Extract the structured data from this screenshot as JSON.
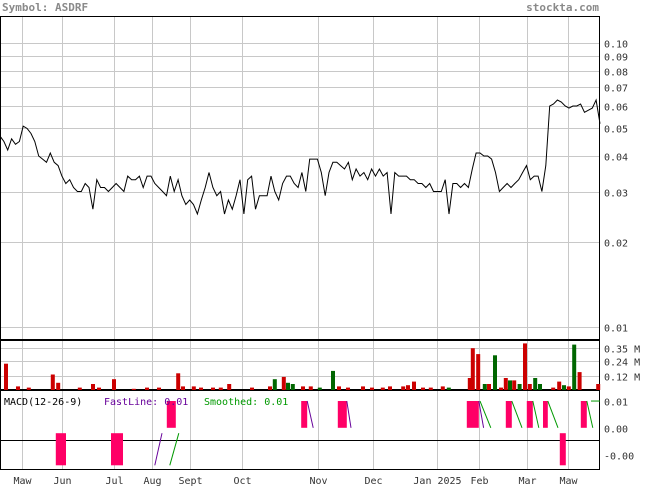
{
  "header": {
    "symbol_text": "Symbol: ASDRF",
    "site": "stockta.com"
  },
  "colors": {
    "price_line": "#000000",
    "vol_up": "#cc0000",
    "vol_down": "#006600",
    "macd_fill": "#ff0066",
    "fast": "#660099",
    "smooth": "#009900",
    "grid": "#c8c8c8"
  },
  "chart_data": [
    {
      "type": "line",
      "name": "price",
      "scale": "log",
      "ylim": [
        0.009,
        0.1
      ],
      "y_ticks": [
        "0.10",
        "0.09",
        "0.08",
        "0.07",
        "0.06",
        "0.05",
        "0.04",
        "0.03",
        "0.02",
        "0.01"
      ],
      "y_tick_values": [
        0.1,
        0.09,
        0.08,
        0.07,
        0.06,
        0.05,
        0.04,
        0.03,
        0.02,
        0.01
      ],
      "x_labels": [
        "Maw",
        "Jun",
        "Jul",
        "Aug",
        "Sept",
        "Oct",
        "Nov",
        "Dec",
        "Jan 2025",
        "Feb",
        "Mar",
        "Maw"
      ],
      "x_label_pos": [
        0.036,
        0.103,
        0.19,
        0.253,
        0.317,
        0.403,
        0.53,
        0.621,
        0.729,
        0.798,
        0.878,
        0.946
      ],
      "values": [
        0.047,
        0.045,
        0.042,
        0.046,
        0.044,
        0.045,
        0.051,
        0.05,
        0.048,
        0.045,
        0.04,
        0.039,
        0.038,
        0.041,
        0.038,
        0.037,
        0.034,
        0.032,
        0.033,
        0.031,
        0.03,
        0.03,
        0.032,
        0.031,
        0.026,
        0.033,
        0.031,
        0.031,
        0.03,
        0.031,
        0.032,
        0.031,
        0.03,
        0.034,
        0.033,
        0.033,
        0.034,
        0.031,
        0.034,
        0.034,
        0.032,
        0.031,
        0.03,
        0.029,
        0.034,
        0.03,
        0.033,
        0.029,
        0.027,
        0.028,
        0.027,
        0.025,
        0.028,
        0.031,
        0.035,
        0.031,
        0.029,
        0.03,
        0.025,
        0.028,
        0.026,
        0.029,
        0.033,
        0.025,
        0.033,
        0.034,
        0.026,
        0.029,
        0.029,
        0.029,
        0.034,
        0.03,
        0.028,
        0.032,
        0.034,
        0.034,
        0.032,
        0.031,
        0.035,
        0.03,
        0.039,
        0.039,
        0.039,
        0.035,
        0.029,
        0.035,
        0.038,
        0.038,
        0.037,
        0.036,
        0.038,
        0.033,
        0.036,
        0.034,
        0.035,
        0.033,
        0.036,
        0.034,
        0.036,
        0.034,
        0.035,
        0.025,
        0.035,
        0.034,
        0.034,
        0.034,
        0.033,
        0.033,
        0.032,
        0.032,
        0.031,
        0.032,
        0.03,
        0.03,
        0.03,
        0.033,
        0.025,
        0.032,
        0.032,
        0.031,
        0.032,
        0.031,
        0.036,
        0.041,
        0.041,
        0.04,
        0.04,
        0.039,
        0.035,
        0.03,
        0.031,
        0.032,
        0.031,
        0.032,
        0.033,
        0.035,
        0.037,
        0.033,
        0.034,
        0.034,
        0.03,
        0.037,
        0.06,
        0.061,
        0.063,
        0.062,
        0.06,
        0.059,
        0.06,
        0.06,
        0.061,
        0.057,
        0.058,
        0.059,
        0.063,
        0.052
      ]
    },
    {
      "type": "bar",
      "name": "volume",
      "y_ticks": [
        "0.35 M",
        "0.24 M",
        "0.12 M"
      ],
      "y_tick_values": [
        0.35,
        0.24,
        0.12
      ],
      "ylim": [
        0,
        0.41
      ],
      "bars": [
        {
          "x": 0.01,
          "v": 0.22,
          "c": "u"
        },
        {
          "x": 0.03,
          "v": 0.03,
          "c": "u"
        },
        {
          "x": 0.048,
          "v": 0.02,
          "c": "u"
        },
        {
          "x": 0.088,
          "v": 0.13,
          "c": "u"
        },
        {
          "x": 0.097,
          "v": 0.06,
          "c": "u"
        },
        {
          "x": 0.133,
          "v": 0.02,
          "c": "u"
        },
        {
          "x": 0.155,
          "v": 0.05,
          "c": "u"
        },
        {
          "x": 0.165,
          "v": 0.02,
          "c": "u"
        },
        {
          "x": 0.19,
          "v": 0.09,
          "c": "u"
        },
        {
          "x": 0.223,
          "v": 0.01,
          "c": "u"
        },
        {
          "x": 0.245,
          "v": 0.02,
          "c": "u"
        },
        {
          "x": 0.265,
          "v": 0.02,
          "c": "u"
        },
        {
          "x": 0.297,
          "v": 0.14,
          "c": "u"
        },
        {
          "x": 0.305,
          "v": 0.03,
          "c": "u"
        },
        {
          "x": 0.323,
          "v": 0.03,
          "c": "u"
        },
        {
          "x": 0.335,
          "v": 0.02,
          "c": "u"
        },
        {
          "x": 0.355,
          "v": 0.02,
          "c": "u"
        },
        {
          "x": 0.368,
          "v": 0.02,
          "c": "u"
        },
        {
          "x": 0.382,
          "v": 0.05,
          "c": "u"
        },
        {
          "x": 0.42,
          "v": 0.02,
          "c": "u"
        },
        {
          "x": 0.45,
          "v": 0.03,
          "c": "u"
        },
        {
          "x": 0.458,
          "v": 0.09,
          "c": "d"
        },
        {
          "x": 0.473,
          "v": 0.11,
          "c": "u"
        },
        {
          "x": 0.48,
          "v": 0.06,
          "c": "d"
        },
        {
          "x": 0.488,
          "v": 0.05,
          "c": "d"
        },
        {
          "x": 0.505,
          "v": 0.03,
          "c": "u"
        },
        {
          "x": 0.518,
          "v": 0.03,
          "c": "u"
        },
        {
          "x": 0.533,
          "v": 0.02,
          "c": "d"
        },
        {
          "x": 0.555,
          "v": 0.16,
          "c": "d"
        },
        {
          "x": 0.565,
          "v": 0.03,
          "c": "u"
        },
        {
          "x": 0.58,
          "v": 0.02,
          "c": "u"
        },
        {
          "x": 0.605,
          "v": 0.03,
          "c": "u"
        },
        {
          "x": 0.62,
          "v": 0.02,
          "c": "u"
        },
        {
          "x": 0.638,
          "v": 0.02,
          "c": "u"
        },
        {
          "x": 0.65,
          "v": 0.03,
          "c": "u"
        },
        {
          "x": 0.672,
          "v": 0.03,
          "c": "u"
        },
        {
          "x": 0.68,
          "v": 0.04,
          "c": "u"
        },
        {
          "x": 0.69,
          "v": 0.07,
          "c": "u"
        },
        {
          "x": 0.705,
          "v": 0.02,
          "c": "u"
        },
        {
          "x": 0.718,
          "v": 0.02,
          "c": "u"
        },
        {
          "x": 0.738,
          "v": 0.03,
          "c": "u"
        },
        {
          "x": 0.748,
          "v": 0.02,
          "c": "d"
        },
        {
          "x": 0.783,
          "v": 0.1,
          "c": "u"
        },
        {
          "x": 0.788,
          "v": 0.35,
          "c": "u"
        },
        {
          "x": 0.797,
          "v": 0.3,
          "c": "u"
        },
        {
          "x": 0.808,
          "v": 0.05,
          "c": "d"
        },
        {
          "x": 0.815,
          "v": 0.05,
          "c": "u"
        },
        {
          "x": 0.825,
          "v": 0.29,
          "c": "d"
        },
        {
          "x": 0.835,
          "v": 0.02,
          "c": "u"
        },
        {
          "x": 0.843,
          "v": 0.1,
          "c": "u"
        },
        {
          "x": 0.85,
          "v": 0.08,
          "c": "d"
        },
        {
          "x": 0.857,
          "v": 0.08,
          "c": "u"
        },
        {
          "x": 0.866,
          "v": 0.05,
          "c": "d"
        },
        {
          "x": 0.875,
          "v": 0.39,
          "c": "u"
        },
        {
          "x": 0.883,
          "v": 0.05,
          "c": "u"
        },
        {
          "x": 0.892,
          "v": 0.1,
          "c": "d"
        },
        {
          "x": 0.9,
          "v": 0.05,
          "c": "d"
        },
        {
          "x": 0.922,
          "v": 0.02,
          "c": "u"
        },
        {
          "x": 0.932,
          "v": 0.07,
          "c": "u"
        },
        {
          "x": 0.94,
          "v": 0.04,
          "c": "d"
        },
        {
          "x": 0.948,
          "v": 0.03,
          "c": "u"
        },
        {
          "x": 0.957,
          "v": 0.38,
          "c": "d"
        },
        {
          "x": 0.966,
          "v": 0.15,
          "c": "u"
        },
        {
          "x": 0.997,
          "v": 0.05,
          "c": "u"
        }
      ]
    },
    {
      "type": "macd",
      "name": "MACD(12-26-9)",
      "label_title": "MACD(12-26-9)",
      "label_fast": "FastLine: 0.01",
      "label_smooth": "Smoothed: 0.01",
      "y_ticks": [
        "0.01",
        "0.00",
        "-0.00"
      ],
      "y_tick_values": [
        0.01,
        0.0,
        -0.01
      ],
      "ylim": [
        -0.015,
        0.013
      ],
      "blocks": [
        {
          "x0": 0.093,
          "x1": 0.11,
          "hi": -0.002,
          "lo": -0.014
        },
        {
          "x0": 0.185,
          "x1": 0.205,
          "hi": -0.002,
          "lo": -0.014
        },
        {
          "x0": 0.278,
          "x1": 0.293,
          "hi": 0.01,
          "lo": 0.0
        },
        {
          "x0": 0.502,
          "x1": 0.512,
          "hi": 0.01,
          "lo": 0.0
        },
        {
          "x0": 0.563,
          "x1": 0.578,
          "hi": 0.01,
          "lo": 0.0
        },
        {
          "x0": 0.778,
          "x1": 0.798,
          "hi": 0.01,
          "lo": 0.0
        },
        {
          "x0": 0.843,
          "x1": 0.853,
          "hi": 0.01,
          "lo": 0.0
        },
        {
          "x0": 0.878,
          "x1": 0.888,
          "hi": 0.01,
          "lo": 0.0
        },
        {
          "x0": 0.905,
          "x1": 0.913,
          "hi": 0.01,
          "lo": 0.0
        },
        {
          "x0": 0.933,
          "x1": 0.943,
          "hi": -0.002,
          "lo": -0.014
        },
        {
          "x0": 0.968,
          "x1": 0.978,
          "hi": 0.01,
          "lo": 0.0
        }
      ],
      "fast_segments": [
        [
          [
            0.258,
            -0.014
          ],
          [
            0.27,
            -0.002
          ]
        ],
        [
          [
            0.512,
            0.01
          ],
          [
            0.522,
            0.0
          ]
        ],
        [
          [
            0.578,
            0.01
          ],
          [
            0.585,
            0.0
          ]
        ],
        [
          [
            0.798,
            0.01
          ],
          [
            0.806,
            0.0
          ]
        ]
      ],
      "smooth_segments": [
        [
          [
            0.283,
            -0.014
          ],
          [
            0.298,
            -0.002
          ]
        ],
        [
          [
            0.8,
            0.01
          ],
          [
            0.818,
            0.0
          ]
        ],
        [
          [
            0.853,
            0.01
          ],
          [
            0.87,
            0.0
          ]
        ],
        [
          [
            0.888,
            0.01
          ],
          [
            0.898,
            0.0
          ]
        ],
        [
          [
            0.913,
            0.01
          ],
          [
            0.93,
            0.0
          ]
        ],
        [
          [
            0.978,
            0.01
          ],
          [
            0.988,
            0.0
          ]
        ]
      ]
    }
  ]
}
